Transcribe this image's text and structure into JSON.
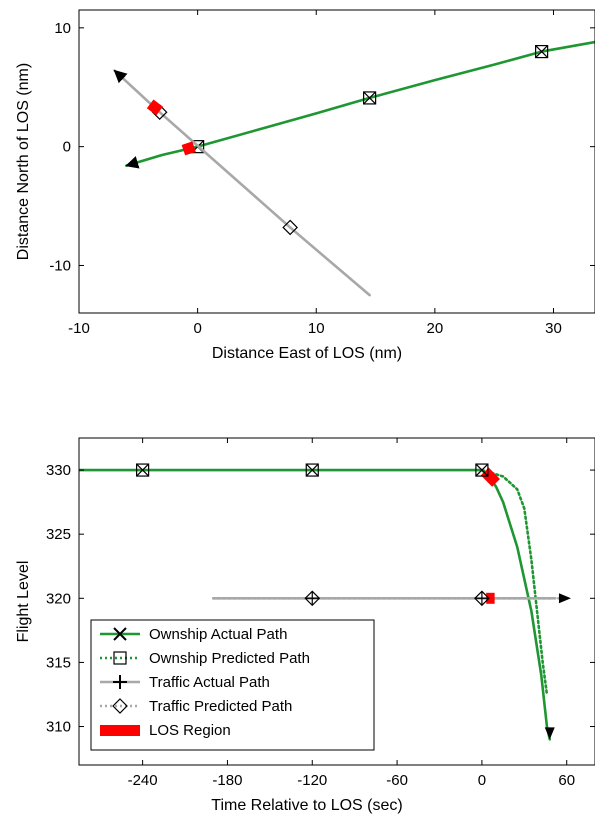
{
  "colors": {
    "ownship": "#1e9632",
    "traffic": "#a8a8a8",
    "los": "#ff0000",
    "axis": "#000000"
  },
  "chart_data": [
    {
      "type": "line",
      "xlabel": "Distance East of LOS (nm)",
      "ylabel": "Distance North of LOS (nm)",
      "xlim": [
        -10,
        33.5
      ],
      "ylim": [
        -14,
        11.5
      ],
      "xticks": [
        -10,
        0,
        10,
        20,
        30
      ],
      "yticks": [
        -10,
        0,
        10
      ],
      "grid": false,
      "series": [
        {
          "name": "Ownship Actual Path",
          "role": "ownship",
          "x": [
            -6,
            -3,
            0,
            5,
            10,
            14.5,
            20,
            25,
            29,
            33.5
          ],
          "y": [
            -1.6,
            -0.7,
            0,
            1.4,
            2.8,
            4.1,
            5.6,
            6.9,
            8.0,
            8.8
          ],
          "arrow": "start",
          "markers": [
            {
              "x": 0,
              "y": 0
            },
            {
              "x": 14.5,
              "y": 4.1
            },
            {
              "x": 29,
              "y": 8.0
            }
          ]
        },
        {
          "name": "Traffic Actual Path",
          "role": "traffic",
          "x": [
            -7,
            -3.2,
            7.8,
            14.5
          ],
          "y": [
            6.4,
            2.9,
            -6.8,
            -12.5
          ],
          "arrow": "start",
          "markers": [
            {
              "x": -3.2,
              "y": 2.9
            },
            {
              "x": 7.8,
              "y": -6.8
            }
          ]
        }
      ],
      "los_regions": [
        {
          "x": [
            -4.0,
            -3.2
          ],
          "y": [
            3.6,
            3.0
          ]
        },
        {
          "x": [
            -1.2,
            -0.3
          ],
          "y": [
            -0.3,
            0
          ]
        }
      ]
    },
    {
      "type": "line",
      "xlabel": "Time Relative to LOS (sec)",
      "ylabel": "Flight Level",
      "xlim": [
        -285,
        80
      ],
      "ylim": [
        307,
        332.5
      ],
      "xticks": [
        -240,
        -180,
        -120,
        -60,
        0,
        60
      ],
      "yticks": [
        310,
        315,
        320,
        325,
        330
      ],
      "grid": false,
      "series": [
        {
          "name": "Ownship Actual Path",
          "role": "ownship",
          "dash": "solid",
          "marker": "x",
          "x": [
            -285,
            -240,
            -120,
            0,
            5,
            10,
            15,
            25,
            35,
            42,
            46,
            48
          ],
          "y": [
            330,
            330,
            330,
            330,
            329.5,
            328.7,
            327.5,
            324,
            319,
            314,
            310,
            309
          ]
        },
        {
          "name": "Ownship Predicted Path",
          "role": "ownship",
          "dash": "dotted",
          "marker": "square",
          "x": [
            0,
            15,
            25,
            30,
            35,
            40,
            43,
            46
          ],
          "y": [
            330,
            329.5,
            328.5,
            327,
            323,
            318,
            315,
            312.5
          ]
        },
        {
          "name": "Traffic Actual Path",
          "role": "traffic",
          "dash": "solid",
          "marker": "plus",
          "x": [
            -190,
            -120,
            0,
            50
          ],
          "y": [
            320,
            320,
            320,
            320
          ]
        },
        {
          "name": "Traffic Predicted Path",
          "role": "traffic",
          "dash": "dotted",
          "marker": "diamond",
          "x": [
            -190,
            -120,
            0,
            60
          ],
          "y": [
            320,
            320,
            320,
            320
          ]
        }
      ],
      "point_markers": [
        {
          "x": -240,
          "y": 330,
          "type": "boxx"
        },
        {
          "x": -120,
          "y": 330,
          "type": "boxx"
        },
        {
          "x": 0,
          "y": 330,
          "type": "boxx"
        },
        {
          "x": -120,
          "y": 320,
          "type": "diamondplus"
        },
        {
          "x": 0,
          "y": 320,
          "type": "diamondplus"
        }
      ],
      "los_regions": [
        {
          "x": [
            2,
            10
          ],
          "y": [
            329.9,
            329.0
          ]
        },
        {
          "x": [
            3,
            9
          ],
          "y": [
            320,
            320
          ]
        }
      ],
      "arrows": [
        {
          "x": 48,
          "y": 309,
          "dir": "down",
          "role": "ownship"
        },
        {
          "x": 63,
          "y": 320,
          "dir": "right",
          "role": "traffic"
        }
      ],
      "legend": {
        "placement": "bottom-left",
        "entries": [
          {
            "label": "Ownship Actual Path",
            "role": "ownship",
            "dash": "solid",
            "marker": "x"
          },
          {
            "label": "Ownship Predicted Path",
            "role": "ownship",
            "dash": "dotted",
            "marker": "square"
          },
          {
            "label": "Traffic Actual Path",
            "role": "traffic",
            "dash": "solid",
            "marker": "plus"
          },
          {
            "label": "Traffic Predicted Path",
            "role": "traffic",
            "dash": "dotted",
            "marker": "diamond"
          },
          {
            "label": "LOS Region",
            "role": "los",
            "dash": "solid",
            "marker": "patch"
          }
        ]
      }
    }
  ]
}
